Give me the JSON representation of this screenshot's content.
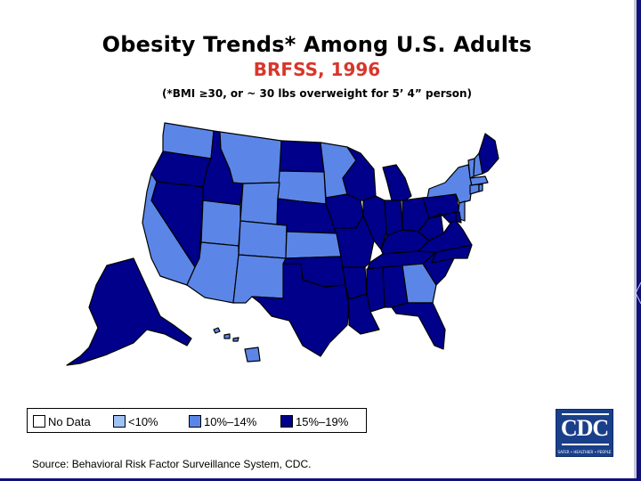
{
  "title": "Obesity Trends* Among U.S. Adults",
  "subtitle": "BRFSS, 1996",
  "note": "(*BMI ≥30, or ~ 30 lbs overweight for 5’ 4” person)",
  "legend": [
    {
      "label": "No Data",
      "color": "#ffffff"
    },
    {
      "label": "<10%",
      "color": "#9fc1f5"
    },
    {
      "label": "10%–14%",
      "color": "#5b86e8"
    },
    {
      "label": "15%–19%",
      "color": "#00008b"
    }
  ],
  "colors": {
    "under10": "#9fc1f5",
    "c10to14": "#5b86e8",
    "c15to19": "#00008b",
    "border": "#000000"
  },
  "logo": {
    "text": "CDC",
    "tagline": "SAFER • HEALTHIER • PEOPLE"
  },
  "source": "Source: Behavioral Risk Factor Surveillance System, CDC.",
  "states": {
    "WA": "10%-14%",
    "OR": "15%-19%",
    "ID": "15%-19%",
    "MT": "10%-14%",
    "ND": "15%-19%",
    "MN": "10%-14%",
    "SD": "10%-14%",
    "WY": "10%-14%",
    "NV": "15%-19%",
    "CA": "10%-14%",
    "UT": "10%-14%",
    "CO": "10%-14%",
    "AZ": "10%-14%",
    "NM": "10%-14%",
    "NE": "15%-19%",
    "KS": "10%-14%",
    "OK": "15%-19%",
    "TX": "15%-19%",
    "IA": "15%-19%",
    "MO": "15%-19%",
    "AR": "15%-19%",
    "LA": "15%-19%",
    "WI": "15%-19%",
    "IL": "15%-19%",
    "MI": "15%-19%",
    "IN": "15%-19%",
    "OH": "15%-19%",
    "KY": "15%-19%",
    "TN": "15%-19%",
    "MS": "15%-19%",
    "AL": "15%-19%",
    "GA": "10%-14%",
    "FL": "15%-19%",
    "SC": "15%-19%",
    "NC": "15%-19%",
    "VA": "15%-19%",
    "WV": "15%-19%",
    "PA": "15%-19%",
    "NY": "10%-14%",
    "VT": "10%-14%",
    "NH": "10%-14%",
    "ME": "15%-19%",
    "MA": "10%-14%",
    "CT": "10%-14%",
    "RI": "10%-14%",
    "NJ": "10%-14%",
    "DE": "15%-19%",
    "MD": "15%-19%",
    "AK": "15%-19%",
    "HI": "10%-14%"
  }
}
